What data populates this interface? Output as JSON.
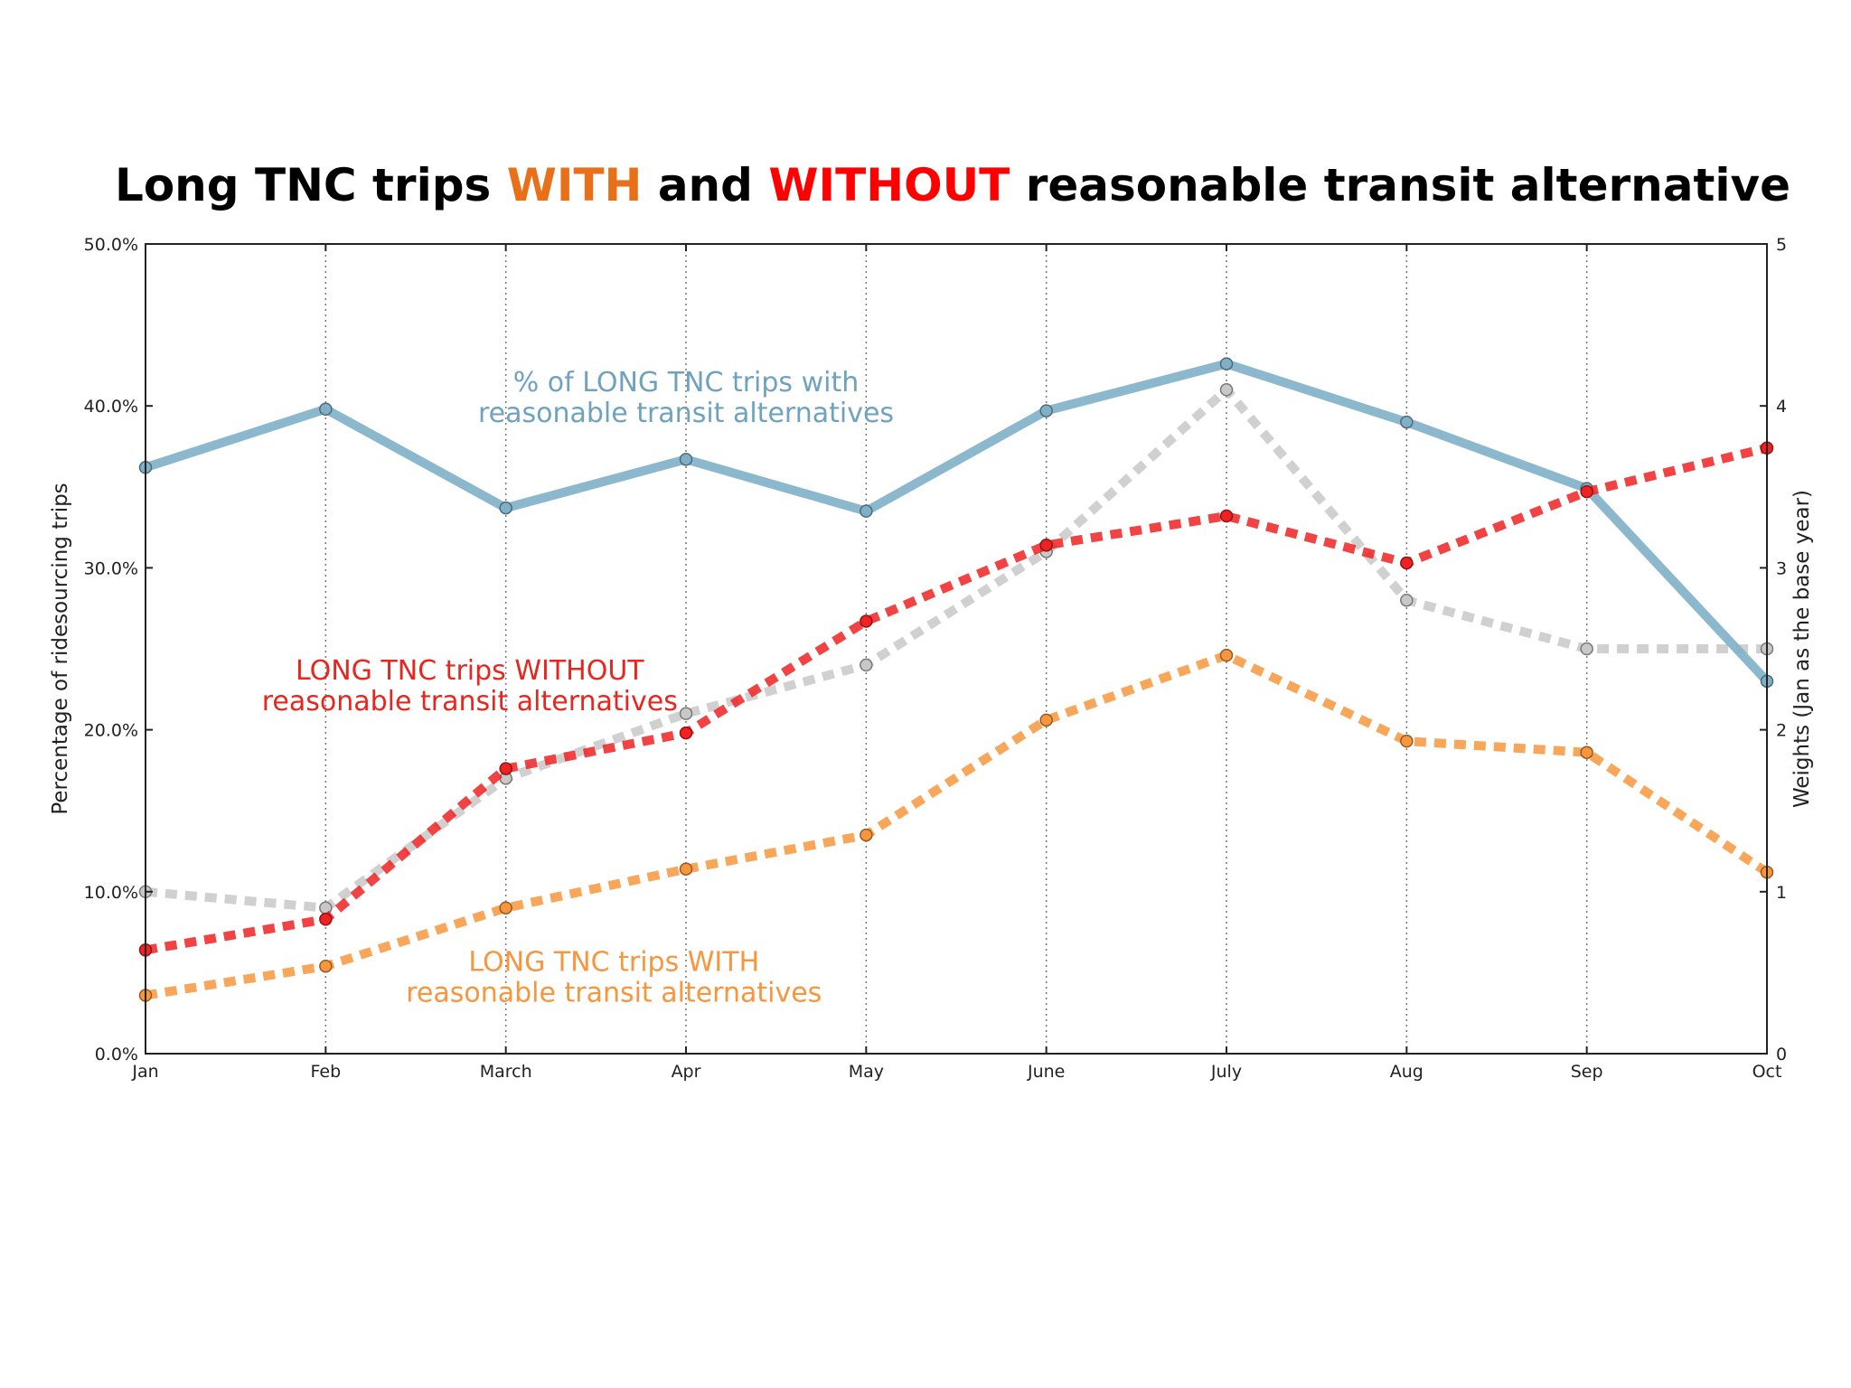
{
  "chart_data": {
    "type": "line",
    "title_parts": [
      {
        "text": "Long TNC trips ",
        "color": "#000000"
      },
      {
        "text": "WITH",
        "color": "#e8701a"
      },
      {
        "text": " and ",
        "color": "#000000"
      },
      {
        "text": "WITHOUT",
        "color": "#ff0000"
      },
      {
        "text": " reasonable transit alternative",
        "color": "#000000"
      }
    ],
    "categories": [
      "Jan",
      "Feb",
      "March",
      "Apr",
      "May",
      "June",
      "July",
      "Aug",
      "Sep",
      "Oct"
    ],
    "ylabel": "Percentage of ridesourcing trips",
    "ylabel_right": "Weights (Jan as the base year)",
    "ylim": [
      0,
      50
    ],
    "ylim_right": [
      0,
      5
    ],
    "yticks": [
      "0.0%",
      "10.0%",
      "20.0%",
      "30.0%",
      "40.0%",
      "50.0%"
    ],
    "yticks_right": [
      "0",
      "1",
      "2",
      "3",
      "4",
      "5"
    ],
    "grid": "vertical dotted",
    "series": [
      {
        "key": "weights",
        "axis": "right",
        "color": "#c8c8c8",
        "style": "dashed",
        "values": [
          1.0,
          0.9,
          1.7,
          2.1,
          2.4,
          3.1,
          4.1,
          2.8,
          2.5,
          2.5
        ]
      },
      {
        "key": "with",
        "axis": "left",
        "color": "#7fb0c8",
        "style": "solid",
        "values": [
          36.2,
          39.8,
          33.7,
          36.7,
          33.5,
          39.7,
          42.6,
          39.0,
          34.9,
          23.0
        ]
      },
      {
        "key": "without",
        "axis": "left",
        "color": "#ee2222",
        "style": "dashed",
        "values": [
          6.4,
          8.3,
          17.6,
          19.8,
          26.7,
          31.4,
          33.2,
          30.3,
          34.7,
          37.4
        ]
      },
      {
        "key": "with_long",
        "axis": "left",
        "color": "#f7963c",
        "style": "dashed",
        "values": [
          3.6,
          5.4,
          9.0,
          11.4,
          13.5,
          20.6,
          24.6,
          19.3,
          18.6,
          11.2
        ]
      }
    ],
    "annotations": [
      {
        "lines": [
          "% of LONG TNC trips with",
          "reasonable transit alternatives"
        ],
        "color": "#6fa3bd",
        "at_category": 3,
        "at_value": 40.9
      },
      {
        "lines": [
          "LONG TNC trips WITHOUT",
          "reasonable transit alternatives"
        ],
        "color": "#e8261e",
        "at_category": 1.8,
        "at_value": 23.1
      },
      {
        "lines": [
          "LONG TNC trips WITH",
          "reasonable transit alternatives"
        ],
        "color": "#f7963c",
        "at_category": 2.6,
        "at_value": 5.1
      }
    ]
  }
}
